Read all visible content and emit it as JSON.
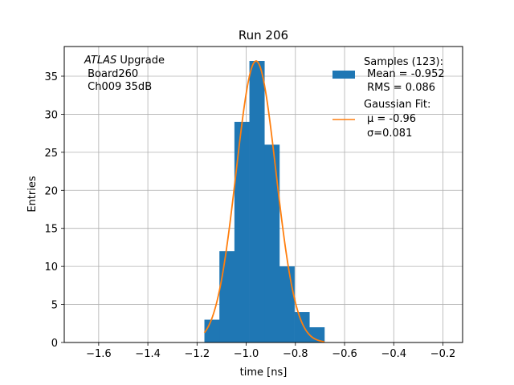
{
  "chart_data": {
    "type": "bar",
    "title": "Run 206",
    "xlabel": "time [ns]",
    "ylabel": "Entries",
    "xlim": [
      -1.74,
      -0.12
    ],
    "ylim": [
      0,
      38.9
    ],
    "xticks": [
      -1.6,
      -1.4,
      -1.2,
      -1.0,
      -0.8,
      -0.6,
      -0.4,
      -0.2
    ],
    "xtick_labels": [
      "−1.6",
      "−1.4",
      "−1.2",
      "−1.0",
      "−0.8",
      "−0.6",
      "−0.4",
      "−0.2"
    ],
    "yticks": [
      0,
      5,
      10,
      15,
      20,
      25,
      30,
      35
    ],
    "yticks_labels": [
      "0",
      "5",
      "10",
      "15",
      "20",
      "25",
      "30",
      "35"
    ],
    "grid": true,
    "histogram": {
      "name": "Samples (123):",
      "color": "#1f77b4",
      "bin_edges": [
        -1.17,
        -1.109,
        -1.048,
        -0.987,
        -0.926,
        -0.865,
        -0.804,
        -0.743,
        -0.682
      ],
      "counts": [
        3,
        12,
        29,
        37,
        26,
        10,
        4,
        2
      ]
    },
    "fit": {
      "name": "Gaussian Fit:",
      "color": "#ff7f0e",
      "type": "gaussian",
      "mu": -0.96,
      "sigma": 0.081,
      "amplitude": 37,
      "x_range": [
        -1.17,
        -0.682
      ]
    },
    "legend": {
      "position": "top-right",
      "entries": [
        {
          "kind": "patch",
          "lines": [
            "Samples (123):",
            " Mean = -0.952",
            " RMS = 0.086"
          ]
        },
        {
          "kind": "line",
          "lines": [
            "Gaussian Fit:",
            "μ = -0.96",
            "σ=0.081"
          ]
        }
      ]
    },
    "annotation": {
      "italic": "ATLAS",
      "line1_rest": " Upgrade",
      "line2": " Board260",
      "line3": " Ch009 35dB"
    }
  }
}
